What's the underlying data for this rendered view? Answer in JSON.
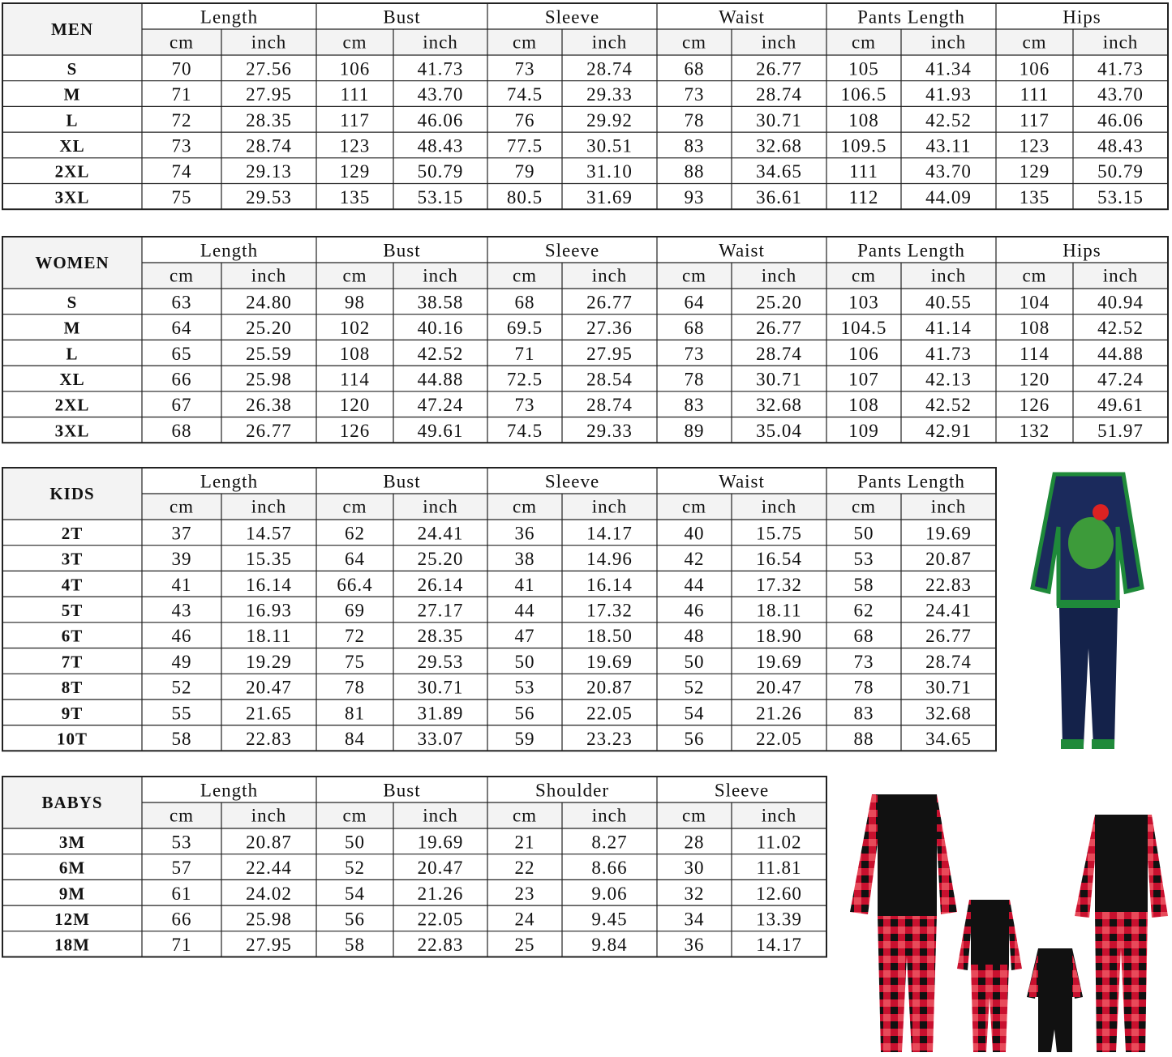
{
  "tables": [
    {
      "label": "MEN",
      "groups": [
        "Length",
        "Bust",
        "Sleeve",
        "Waist",
        "Pants Length",
        "Hips"
      ],
      "units": [
        "cm",
        "inch"
      ],
      "rows": [
        [
          "S",
          "70",
          "27.56",
          "106",
          "41.73",
          "73",
          "28.74",
          "68",
          "26.77",
          "105",
          "41.34",
          "106",
          "41.73"
        ],
        [
          "M",
          "71",
          "27.95",
          "111",
          "43.70",
          "74.5",
          "29.33",
          "73",
          "28.74",
          "106.5",
          "41.93",
          "111",
          "43.70"
        ],
        [
          "L",
          "72",
          "28.35",
          "117",
          "46.06",
          "76",
          "29.92",
          "78",
          "30.71",
          "108",
          "42.52",
          "117",
          "46.06"
        ],
        [
          "XL",
          "73",
          "28.74",
          "123",
          "48.43",
          "77.5",
          "30.51",
          "83",
          "32.68",
          "109.5",
          "43.11",
          "123",
          "48.43"
        ],
        [
          "2XL",
          "74",
          "29.13",
          "129",
          "50.79",
          "79",
          "31.10",
          "88",
          "34.65",
          "111",
          "43.70",
          "129",
          "50.79"
        ],
        [
          "3XL",
          "75",
          "29.53",
          "135",
          "53.15",
          "80.5",
          "31.69",
          "93",
          "36.61",
          "112",
          "44.09",
          "135",
          "53.15"
        ]
      ]
    },
    {
      "label": "WOMEN",
      "groups": [
        "Length",
        "Bust",
        "Sleeve",
        "Waist",
        "Pants Length",
        "Hips"
      ],
      "units": [
        "cm",
        "inch"
      ],
      "rows": [
        [
          "S",
          "63",
          "24.80",
          "98",
          "38.58",
          "68",
          "26.77",
          "64",
          "25.20",
          "103",
          "40.55",
          "104",
          "40.94"
        ],
        [
          "M",
          "64",
          "25.20",
          "102",
          "40.16",
          "69.5",
          "27.36",
          "68",
          "26.77",
          "104.5",
          "41.14",
          "108",
          "42.52"
        ],
        [
          "L",
          "65",
          "25.59",
          "108",
          "42.52",
          "71",
          "27.95",
          "73",
          "28.74",
          "106",
          "41.73",
          "114",
          "44.88"
        ],
        [
          "XL",
          "66",
          "25.98",
          "114",
          "44.88",
          "72.5",
          "28.54",
          "78",
          "30.71",
          "107",
          "42.13",
          "120",
          "47.24"
        ],
        [
          "2XL",
          "67",
          "26.38",
          "120",
          "47.24",
          "73",
          "28.74",
          "83",
          "32.68",
          "108",
          "42.52",
          "126",
          "49.61"
        ],
        [
          "3XL",
          "68",
          "26.77",
          "126",
          "49.61",
          "74.5",
          "29.33",
          "89",
          "35.04",
          "109",
          "42.91",
          "132",
          "51.97"
        ]
      ]
    },
    {
      "label": "KIDS",
      "groups": [
        "Length",
        "Bust",
        "Sleeve",
        "Waist",
        "Pants Length"
      ],
      "units": [
        "cm",
        "inch"
      ],
      "rows": [
        [
          "2T",
          "37",
          "14.57",
          "62",
          "24.41",
          "36",
          "14.17",
          "40",
          "15.75",
          "50",
          "19.69"
        ],
        [
          "3T",
          "39",
          "15.35",
          "64",
          "25.20",
          "38",
          "14.96",
          "42",
          "16.54",
          "53",
          "20.87"
        ],
        [
          "4T",
          "41",
          "16.14",
          "66.4",
          "26.14",
          "41",
          "16.14",
          "44",
          "17.32",
          "58",
          "22.83"
        ],
        [
          "5T",
          "43",
          "16.93",
          "69",
          "27.17",
          "44",
          "17.32",
          "46",
          "18.11",
          "62",
          "24.41"
        ],
        [
          "6T",
          "46",
          "18.11",
          "72",
          "28.35",
          "47",
          "18.50",
          "48",
          "18.90",
          "68",
          "26.77"
        ],
        [
          "7T",
          "49",
          "19.29",
          "75",
          "29.53",
          "50",
          "19.69",
          "50",
          "19.69",
          "73",
          "28.74"
        ],
        [
          "8T",
          "52",
          "20.47",
          "78",
          "30.71",
          "53",
          "20.87",
          "52",
          "20.47",
          "78",
          "30.71"
        ],
        [
          "9T",
          "55",
          "21.65",
          "81",
          "31.89",
          "56",
          "22.05",
          "54",
          "21.26",
          "83",
          "32.68"
        ],
        [
          "10T",
          "58",
          "22.83",
          "84",
          "33.07",
          "59",
          "23.23",
          "56",
          "22.05",
          "88",
          "34.65"
        ]
      ]
    },
    {
      "label": "BABYS",
      "groups": [
        "Length",
        "Bust",
        "Shoulder",
        "Sleeve"
      ],
      "units": [
        "cm",
        "inch"
      ],
      "rows": [
        [
          "3M",
          "53",
          "20.87",
          "50",
          "19.69",
          "21",
          "8.27",
          "28",
          "11.02"
        ],
        [
          "6M",
          "57",
          "22.44",
          "52",
          "20.47",
          "22",
          "8.66",
          "30",
          "11.81"
        ],
        [
          "9M",
          "61",
          "24.02",
          "54",
          "21.26",
          "23",
          "9.06",
          "32",
          "12.60"
        ],
        [
          "12M",
          "66",
          "25.98",
          "56",
          "22.05",
          "24",
          "9.45",
          "34",
          "13.39"
        ],
        [
          "18M",
          "71",
          "27.95",
          "58",
          "22.83",
          "25",
          "9.84",
          "36",
          "14.17"
        ]
      ]
    }
  ]
}
